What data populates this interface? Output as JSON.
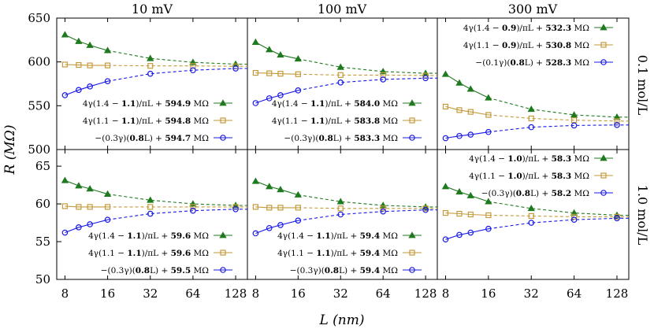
{
  "figure": {
    "column_titles": [
      "10 mV",
      "100 mV",
      "300 mV"
    ],
    "row_titles": [
      "0.1 mol/L",
      "1.0 mol/L"
    ],
    "xlabel": "L (nm)",
    "ylabel": "R (MΩ)",
    "colors": {
      "triangle": "#1f7a1f",
      "square": "#c49a3a",
      "circle": "#1a1ae6"
    }
  },
  "chart_data": [
    {
      "type": "line",
      "row": 0,
      "col": 0,
      "x": [
        8,
        10,
        12,
        16,
        32,
        64,
        128
      ],
      "xlim": [
        7,
        155
      ],
      "xscale": "log2",
      "ylim": [
        500,
        650
      ],
      "series": [
        {
          "marker": "triangle",
          "values": [
            631,
            623.5,
            619,
            613,
            604,
            599.5,
            597.5
          ],
          "legend": {
            "prefix": "4γ(1.4 − ",
            "bold1": "1.1",
            "mid": ")/πL + ",
            "bold2": "594.9",
            "suffix": " MΩ"
          }
        },
        {
          "marker": "square",
          "values": [
            597,
            596.5,
            596,
            596,
            595.5,
            595.5,
            595
          ],
          "legend": {
            "prefix": "4γ(1.1 − ",
            "bold1": "1.1",
            "mid": ")/πL + ",
            "bold2": "594.8",
            "suffix": " MΩ"
          }
        },
        {
          "marker": "circle",
          "values": [
            562,
            568,
            572,
            578,
            586.5,
            590.5,
            592.5
          ],
          "legend": {
            "prefix": "−(0.3γ)(",
            "bold1": "0.8",
            "mid": "L) + ",
            "bold2": "594.7",
            "suffix": " MΩ"
          }
        }
      ]
    },
    {
      "type": "line",
      "row": 0,
      "col": 1,
      "x": [
        8,
        10,
        12,
        16,
        32,
        64,
        128
      ],
      "xlim": [
        7,
        155
      ],
      "xscale": "log2",
      "ylim": [
        500,
        650
      ],
      "series": [
        {
          "marker": "triangle",
          "values": [
            622.5,
            614,
            608,
            603.5,
            594,
            589,
            587
          ],
          "legend": {
            "prefix": "4γ(1.4 − ",
            "bold1": "1.1",
            "mid": ")/πL + ",
            "bold2": "584.0",
            "suffix": " MΩ"
          }
        },
        {
          "marker": "square",
          "values": [
            587.5,
            587,
            586.5,
            586,
            585,
            585,
            584.5
          ],
          "legend": {
            "prefix": "4γ(1.1 − ",
            "bold1": "1.1",
            "mid": ")/πL + ",
            "bold2": "583.8",
            "suffix": " MΩ"
          }
        },
        {
          "marker": "circle",
          "values": [
            553,
            558.5,
            562,
            567.5,
            576.5,
            580,
            581.5
          ],
          "legend": {
            "prefix": "−(0.3γ)(",
            "bold1": "0.8",
            "mid": "L) + ",
            "bold2": "583.3",
            "suffix": " MΩ"
          }
        }
      ]
    },
    {
      "type": "line",
      "row": 0,
      "col": 2,
      "x": [
        8,
        10,
        12,
        16,
        32,
        64,
        128
      ],
      "xlim": [
        7,
        155
      ],
      "xscale": "log2",
      "ylim": [
        500,
        650
      ],
      "series": [
        {
          "marker": "triangle",
          "values": [
            586,
            576,
            569,
            559,
            546,
            539.5,
            537
          ],
          "legend": {
            "prefix": "4γ(1.4 − ",
            "bold1": "0.9",
            "mid": ")/πL + ",
            "bold2": "532.3",
            "suffix": " MΩ"
          }
        },
        {
          "marker": "square",
          "values": [
            549,
            545,
            543,
            539.5,
            535.5,
            533.5,
            532.5
          ],
          "legend": {
            "prefix": "4γ(1.1 − ",
            "bold1": "0.9",
            "mid": ")/πL + ",
            "bold2": "530.8",
            "suffix": " MΩ"
          }
        },
        {
          "marker": "circle",
          "values": [
            513,
            515.5,
            517,
            520,
            525.5,
            527.5,
            528
          ],
          "legend": {
            "prefix": "−(0.1γ)(",
            "bold1": "0.8",
            "mid": "L) + ",
            "bold2": "528.3",
            "suffix": " MΩ"
          }
        }
      ]
    },
    {
      "type": "line",
      "row": 1,
      "col": 0,
      "x": [
        8,
        10,
        12,
        16,
        32,
        64,
        128
      ],
      "xlim": [
        7,
        155
      ],
      "xscale": "log2",
      "ylim": [
        50,
        67.2
      ],
      "series": [
        {
          "marker": "triangle",
          "values": [
            63.1,
            62.4,
            62,
            61.3,
            60.5,
            60,
            59.8
          ],
          "legend": {
            "prefix": "4γ(1.4 − ",
            "bold1": "1.1",
            "mid": ")/πL + ",
            "bold2": "59.6",
            "suffix": " MΩ"
          }
        },
        {
          "marker": "square",
          "values": [
            59.7,
            59.6,
            59.6,
            59.6,
            59.6,
            59.6,
            59.6
          ],
          "legend": {
            "prefix": "4γ(1.1 − ",
            "bold1": "1.1",
            "mid": ")/πL + ",
            "bold2": "59.6",
            "suffix": " MΩ"
          }
        },
        {
          "marker": "circle",
          "values": [
            56.2,
            56.9,
            57.3,
            57.9,
            58.7,
            59.1,
            59.3
          ],
          "legend": {
            "prefix": "−(0.3γ)(",
            "bold1": "0.8",
            "mid": "L) + ",
            "bold2": "59.5",
            "suffix": " MΩ"
          }
        }
      ]
    },
    {
      "type": "line",
      "row": 1,
      "col": 1,
      "x": [
        8,
        10,
        12,
        16,
        32,
        64,
        128
      ],
      "xlim": [
        7,
        155
      ],
      "xscale": "log2",
      "ylim": [
        50,
        67.2
      ],
      "series": [
        {
          "marker": "triangle",
          "values": [
            63,
            62.3,
            61.9,
            61.2,
            60.3,
            59.8,
            59.6
          ],
          "legend": {
            "prefix": "4γ(1.4 − ",
            "bold1": "1.1",
            "mid": ")/πL + ",
            "bold2": "59.4",
            "suffix": " MΩ"
          }
        },
        {
          "marker": "square",
          "values": [
            59.6,
            59.5,
            59.5,
            59.5,
            59.4,
            59.4,
            59.4
          ],
          "legend": {
            "prefix": "4γ(1.1 − ",
            "bold1": "1.1",
            "mid": ")/πL + ",
            "bold2": "59.4",
            "suffix": " MΩ"
          }
        },
        {
          "marker": "circle",
          "values": [
            56.1,
            56.8,
            57.2,
            57.8,
            58.6,
            59,
            59.2
          ],
          "legend": {
            "prefix": "−(0.3γ)(",
            "bold1": "0.8",
            "mid": "L) + ",
            "bold2": "59.4",
            "suffix": " MΩ"
          }
        }
      ]
    },
    {
      "type": "line",
      "row": 1,
      "col": 2,
      "x": [
        8,
        10,
        12,
        16,
        32,
        64,
        128
      ],
      "xlim": [
        7,
        155
      ],
      "xscale": "log2",
      "ylim": [
        50,
        67.2
      ],
      "series": [
        {
          "marker": "triangle",
          "values": [
            62.3,
            61.6,
            61.1,
            60.3,
            59.4,
            58.8,
            58.5
          ],
          "legend": {
            "prefix": "4γ(1.4 − ",
            "bold1": "1.0",
            "mid": ")/πL + ",
            "bold2": "58.3",
            "suffix": " MΩ"
          }
        },
        {
          "marker": "square",
          "values": [
            58.8,
            58.7,
            58.6,
            58.5,
            58.4,
            58.3,
            58.3
          ],
          "legend": {
            "prefix": "4γ(1.1 − ",
            "bold1": "1.0",
            "mid": ")/πL + ",
            "bold2": "58.3",
            "suffix": " MΩ"
          }
        },
        {
          "marker": "circle",
          "values": [
            55.3,
            55.9,
            56.2,
            56.7,
            57.5,
            57.9,
            58.1
          ],
          "legend": {
            "prefix": "−(0.3γ)(",
            "bold1": "0.8",
            "mid": "L) + ",
            "bold2": "58.2",
            "suffix": " MΩ"
          }
        }
      ]
    }
  ],
  "axes": {
    "top_yticks": [
      500,
      550,
      600,
      650
    ],
    "bottom_yticks": [
      50,
      55,
      60,
      65
    ],
    "xticks": [
      8,
      16,
      32,
      64,
      128
    ]
  }
}
